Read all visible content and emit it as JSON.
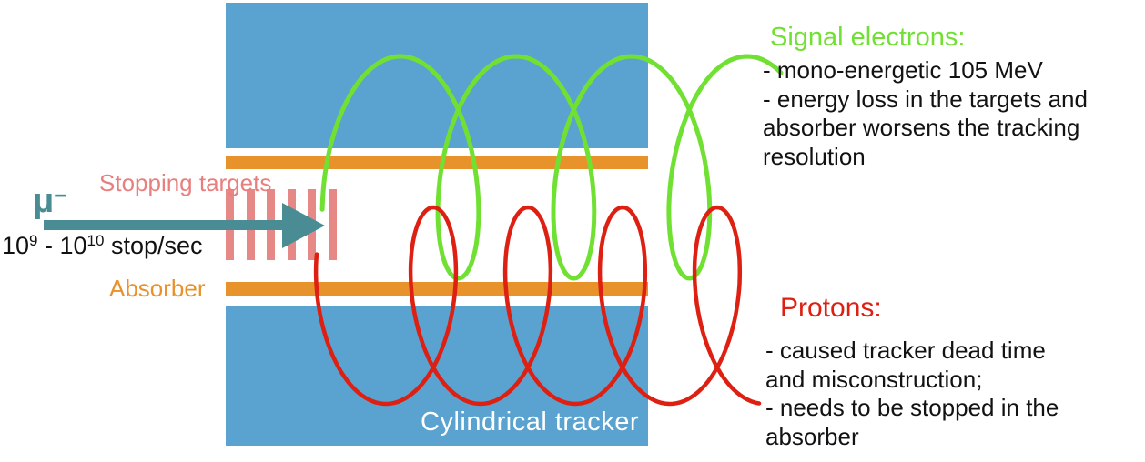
{
  "beam": {
    "particle": "μ",
    "charge_sup": "−",
    "rate_base_1": "10",
    "rate_exp_1": "9",
    "rate_middle": " - 10",
    "rate_exp_2": "10",
    "rate_unit": " stop/sec"
  },
  "labels": {
    "stopping_targets": "Stopping targets",
    "absorber": "Absorber",
    "tracker": "Cylindrical tracker"
  },
  "stopping_targets": {
    "bar_count": 6
  },
  "annotations": {
    "signal_electrons": {
      "title": "Signal electrons:",
      "lines": [
        "- mono-energetic 105 MeV",
        "- energy loss in the targets and",
        "absorber worsens the tracking",
        "resolution"
      ]
    },
    "protons": {
      "title": "Protons:",
      "lines": [
        "- caused tracker dead time",
        "and misconstruction;",
        "- needs to be stopped in the",
        "absorber"
      ]
    }
  },
  "colors": {
    "tracker_blue": "#5aa2d0",
    "absorber_orange": "#e8922b",
    "target_salmon": "#e68886",
    "target_label_salmon": "#e87f7f",
    "beam_teal": "#4a8c93",
    "electron_green": "#70e032",
    "proton_red": "#dd2012",
    "body_text": "#121212",
    "tracker_label_white": "#ffffff"
  }
}
